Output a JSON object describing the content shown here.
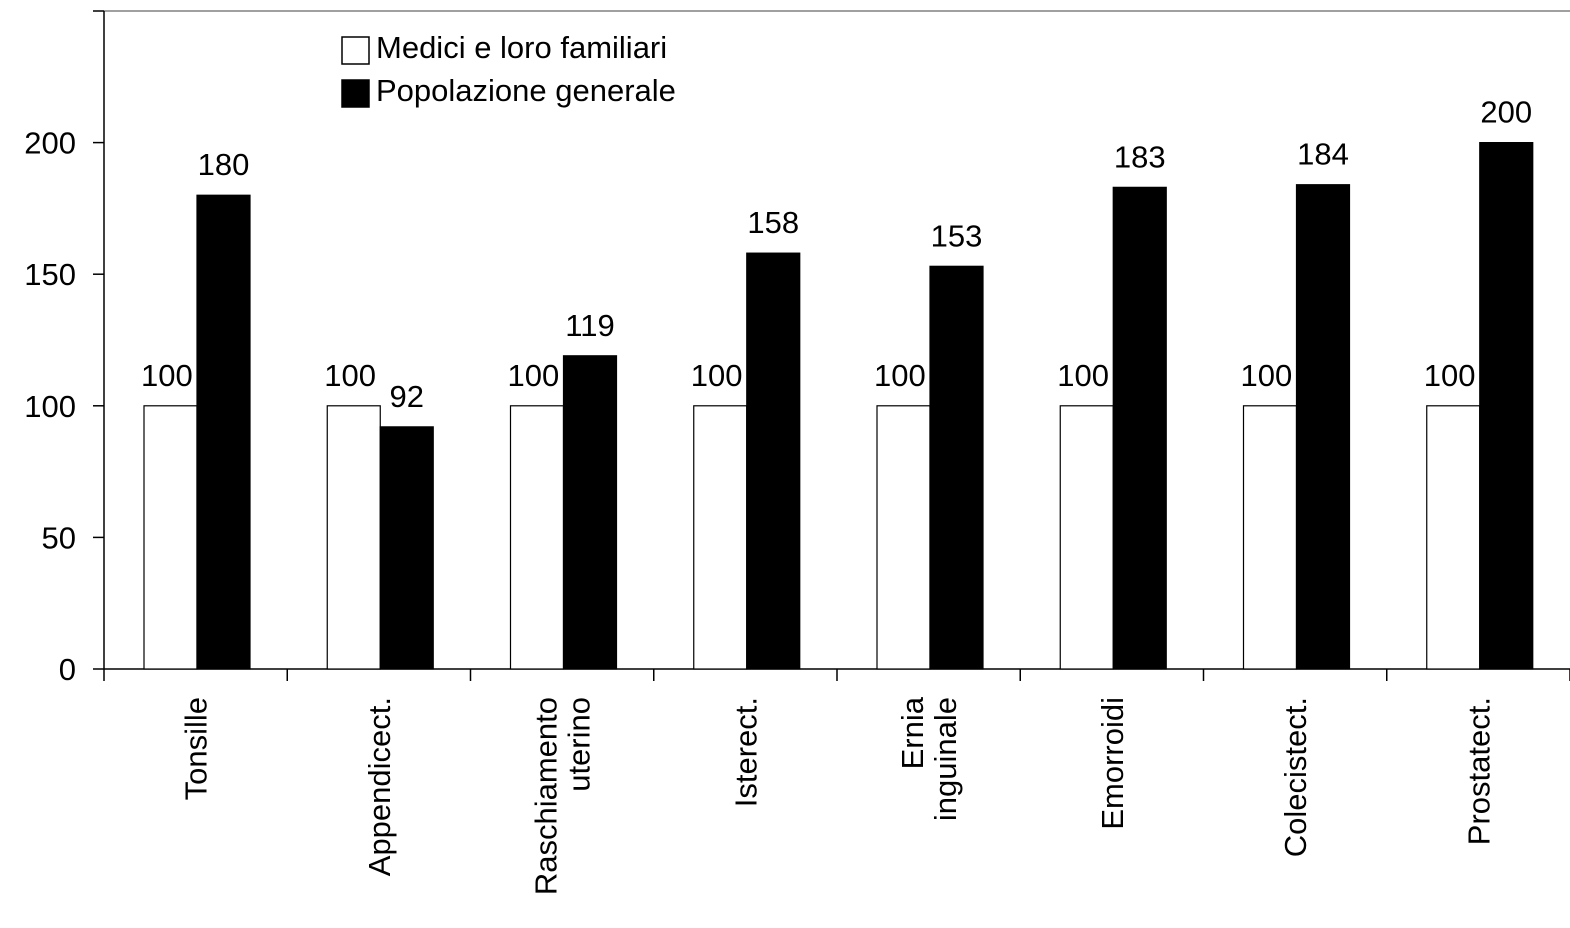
{
  "chart_data": {
    "type": "bar",
    "categories": [
      [
        "Tonsille"
      ],
      [
        "Appendicect."
      ],
      [
        "Raschiamento",
        "uterino"
      ],
      [
        "Isterect."
      ],
      [
        "Ernia",
        "inguinale"
      ],
      [
        "Emorroidi"
      ],
      [
        "Colecistect."
      ],
      [
        "Prostatect."
      ]
    ],
    "series": [
      {
        "name": "Medici e loro familiari",
        "values": [
          100,
          100,
          100,
          100,
          100,
          100,
          100,
          100
        ],
        "color": "#ffffff"
      },
      {
        "name": "Popolazione generale",
        "values": [
          180,
          92,
          119,
          158,
          153,
          183,
          184,
          200
        ],
        "color": "#000000"
      }
    ],
    "title": "",
    "xlabel": "",
    "ylabel": "",
    "ylim": [
      0,
      250
    ],
    "yticks": [
      0,
      50,
      100,
      150,
      200
    ],
    "grid": false,
    "legend_position": "top-center",
    "data_labels": true
  }
}
